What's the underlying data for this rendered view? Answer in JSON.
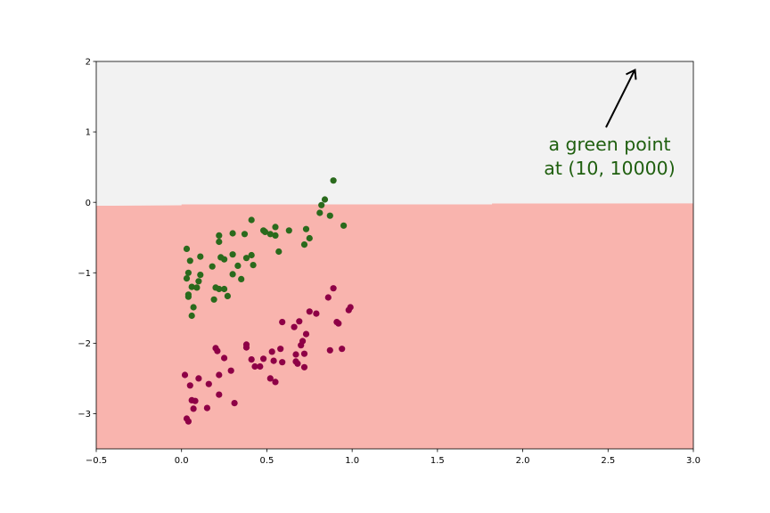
{
  "chart_data": {
    "type": "scatter",
    "title": "",
    "xlabel": "",
    "ylabel": "",
    "xlim": [
      -0.5,
      3.0
    ],
    "ylim": [
      -3.5,
      2.0
    ],
    "xticks": [
      -0.5,
      0.0,
      0.5,
      1.0,
      1.5,
      2.0,
      2.5,
      3.0
    ],
    "xtick_labels": [
      "−0.5",
      "0.0",
      "0.5",
      "1.0",
      "1.5",
      "2.0",
      "2.5",
      "3.0"
    ],
    "yticks": [
      2,
      1,
      0,
      -1,
      -2,
      -3
    ],
    "ytick_labels": [
      "2",
      "1",
      "0",
      "−1",
      "−2",
      "−3"
    ],
    "grid": false,
    "background_regions": [
      {
        "label": "upper",
        "color": "#f2f2f2"
      },
      {
        "label": "lower",
        "color": "#f9b4ae"
      }
    ],
    "boundary_y": -0.03,
    "series": [
      {
        "color": "#2a6a1c",
        "points": [
          [
            0.03,
            -0.66
          ],
          [
            0.05,
            -0.83
          ],
          [
            0.04,
            -1.0
          ],
          [
            0.03,
            -1.08
          ],
          [
            0.11,
            -0.77
          ],
          [
            0.06,
            -1.2
          ],
          [
            0.09,
            -1.21
          ],
          [
            0.11,
            -1.03
          ],
          [
            0.1,
            -1.12
          ],
          [
            0.04,
            -1.31
          ],
          [
            0.04,
            -1.34
          ],
          [
            0.07,
            -1.49
          ],
          [
            0.06,
            -1.61
          ],
          [
            0.18,
            -0.91
          ],
          [
            0.2,
            -1.21
          ],
          [
            0.19,
            -1.38
          ],
          [
            0.22,
            -1.23
          ],
          [
            0.22,
            -0.56
          ],
          [
            0.22,
            -0.47
          ],
          [
            0.23,
            -0.78
          ],
          [
            0.25,
            -0.81
          ],
          [
            0.25,
            -1.23
          ],
          [
            0.27,
            -1.33
          ],
          [
            0.3,
            -0.44
          ],
          [
            0.3,
            -0.74
          ],
          [
            0.3,
            -1.02
          ],
          [
            0.33,
            -0.9
          ],
          [
            0.35,
            -1.09
          ],
          [
            0.37,
            -0.45
          ],
          [
            0.38,
            -0.79
          ],
          [
            0.41,
            -0.75
          ],
          [
            0.42,
            -0.89
          ],
          [
            0.41,
            -0.25
          ],
          [
            0.48,
            -0.4
          ],
          [
            0.49,
            -0.42
          ],
          [
            0.52,
            -0.45
          ],
          [
            0.55,
            -0.35
          ],
          [
            0.55,
            -0.47
          ],
          [
            0.57,
            -0.7
          ],
          [
            0.63,
            -0.4
          ],
          [
            0.72,
            -0.6
          ],
          [
            0.73,
            -0.38
          ],
          [
            0.75,
            -0.51
          ],
          [
            0.81,
            -0.15
          ],
          [
            0.82,
            -0.04
          ],
          [
            0.84,
            0.04
          ],
          [
            0.87,
            -0.19
          ],
          [
            0.89,
            0.31
          ],
          [
            0.95,
            -0.33
          ]
        ]
      },
      {
        "color": "#8e0046",
        "points": [
          [
            0.02,
            -2.45
          ],
          [
            0.03,
            -3.07
          ],
          [
            0.04,
            -3.11
          ],
          [
            0.05,
            -2.6
          ],
          [
            0.06,
            -2.81
          ],
          [
            0.07,
            -2.93
          ],
          [
            0.08,
            -2.82
          ],
          [
            0.1,
            -2.5
          ],
          [
            0.15,
            -2.92
          ],
          [
            0.16,
            -2.58
          ],
          [
            0.2,
            -2.07
          ],
          [
            0.21,
            -2.11
          ],
          [
            0.22,
            -2.45
          ],
          [
            0.22,
            -2.73
          ],
          [
            0.25,
            -2.21
          ],
          [
            0.29,
            -2.39
          ],
          [
            0.31,
            -2.85
          ],
          [
            0.38,
            -2.02
          ],
          [
            0.38,
            -2.06
          ],
          [
            0.41,
            -2.23
          ],
          [
            0.43,
            -2.33
          ],
          [
            0.46,
            -2.33
          ],
          [
            0.48,
            -2.22
          ],
          [
            0.52,
            -2.5
          ],
          [
            0.53,
            -2.12
          ],
          [
            0.54,
            -2.25
          ],
          [
            0.55,
            -2.55
          ],
          [
            0.58,
            -2.08
          ],
          [
            0.59,
            -2.27
          ],
          [
            0.59,
            -1.7
          ],
          [
            0.66,
            -1.77
          ],
          [
            0.67,
            -2.16
          ],
          [
            0.67,
            -2.26
          ],
          [
            0.68,
            -2.29
          ],
          [
            0.69,
            -1.69
          ],
          [
            0.7,
            -2.03
          ],
          [
            0.71,
            -1.97
          ],
          [
            0.72,
            -2.15
          ],
          [
            0.72,
            -2.34
          ],
          [
            0.73,
            -1.87
          ],
          [
            0.75,
            -1.55
          ],
          [
            0.79,
            -1.58
          ],
          [
            0.86,
            -1.35
          ],
          [
            0.87,
            -2.1
          ],
          [
            0.89,
            -1.22
          ],
          [
            0.91,
            -1.7
          ],
          [
            0.92,
            -1.72
          ],
          [
            0.94,
            -2.08
          ],
          [
            0.98,
            -1.53
          ],
          [
            0.99,
            -1.49
          ]
        ]
      }
    ],
    "annotation": {
      "text_lines": [
        "a green point",
        "at (10, 10000)"
      ],
      "text_color": "#1f5f0f",
      "arrow_color": "#000000"
    }
  }
}
